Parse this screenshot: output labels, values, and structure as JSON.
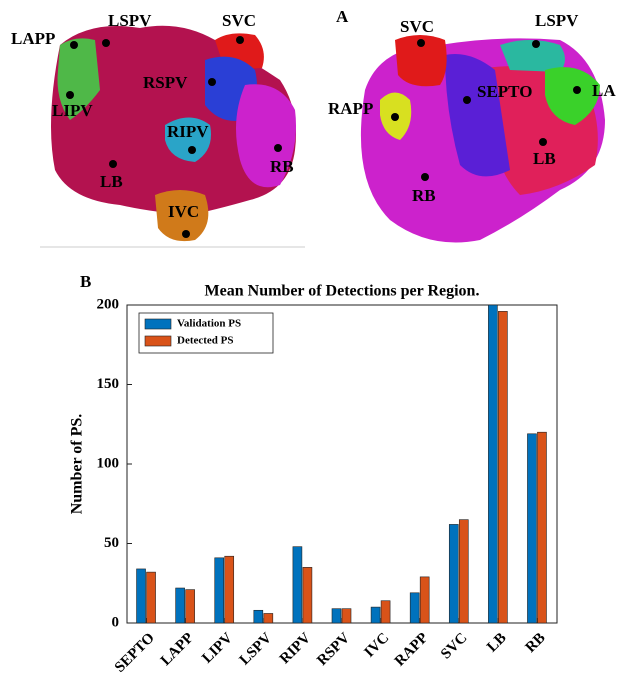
{
  "panel_a": {
    "label": "A",
    "left_view": [
      "LAPP",
      "LSPV",
      "SVC",
      "RSPV",
      "LIPV",
      "RIPV",
      "RB",
      "LB",
      "IVC"
    ],
    "right_view": [
      "SVC",
      "LSPV",
      "RAPP",
      "SEPTO",
      "LA",
      "LB",
      "RB"
    ]
  },
  "panel_b": {
    "label": "B"
  },
  "chart_data": {
    "type": "bar",
    "title": "Mean Number of Detections per Region.",
    "y_label": "Number of PS.",
    "categories": [
      "SEPTO",
      "LAPP",
      "LIPV",
      "LSPV",
      "RIPV",
      "RSPV",
      "IVC",
      "RAPP",
      "SVC",
      "LB",
      "RB"
    ],
    "series": [
      {
        "name": "Validation PS",
        "color": "#0072bd",
        "values": [
          34,
          22,
          41,
          8,
          48,
          9,
          10,
          19,
          62,
          200,
          119
        ]
      },
      {
        "name": "Detected PS",
        "color": "#d95319",
        "values": [
          32,
          21,
          42,
          6,
          35,
          9,
          14,
          29,
          65,
          196,
          120
        ]
      }
    ],
    "ylim": [
      0,
      200
    ],
    "yticks": [
      0,
      50,
      100,
      150,
      200
    ],
    "legend": "upper-left"
  }
}
